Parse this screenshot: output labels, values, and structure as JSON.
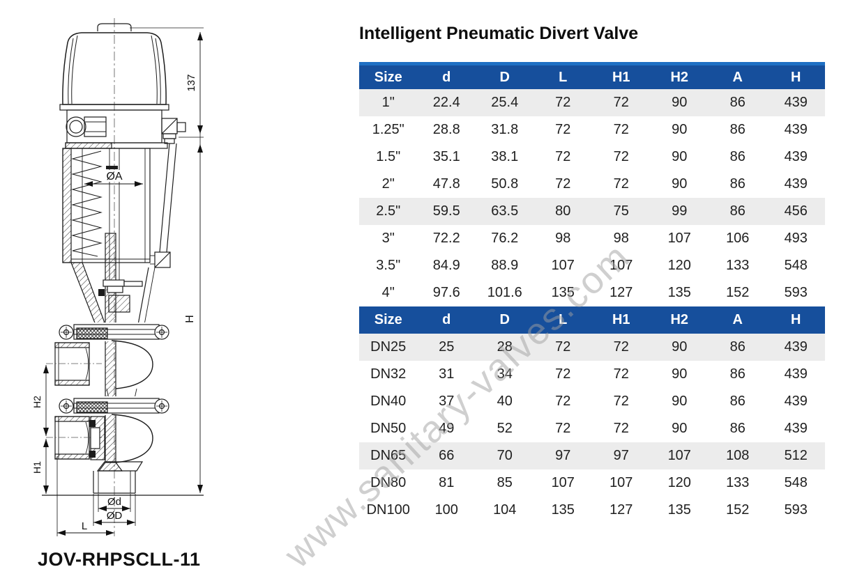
{
  "title": "Intelligent Pneumatic Divert Valve",
  "model": "JOV-RHPSCLL-11",
  "watermark": "www.sanitary-valves.com",
  "colors": {
    "header_bg": "#164f9c",
    "header_top_strip": "#1e6fc3",
    "row_stripe": "#ececec"
  },
  "drawing": {
    "dims": {
      "height_137": "137",
      "total_h": "H",
      "h2": "H2",
      "h1": "H1",
      "dia_a": "ØA",
      "dia_d_inner": "Ød",
      "dia_d_outer": "ØD",
      "l": "L"
    }
  },
  "tables": [
    {
      "headers": [
        "Size",
        "d",
        "D",
        "L",
        "H1",
        "H2",
        "A",
        "H"
      ],
      "rows": [
        [
          "1\"",
          "22.4",
          "25.4",
          "72",
          "72",
          "90",
          "86",
          "439"
        ],
        [
          "1.25\"",
          "28.8",
          "31.8",
          "72",
          "72",
          "90",
          "86",
          "439"
        ],
        [
          "1.5\"",
          "35.1",
          "38.1",
          "72",
          "72",
          "90",
          "86",
          "439"
        ],
        [
          "2\"",
          "47.8",
          "50.8",
          "72",
          "72",
          "90",
          "86",
          "439"
        ],
        [
          "2.5\"",
          "59.5",
          "63.5",
          "80",
          "75",
          "99",
          "86",
          "456"
        ],
        [
          "3\"",
          "72.2",
          "76.2",
          "98",
          "98",
          "107",
          "106",
          "493"
        ],
        [
          "3.5\"",
          "84.9",
          "88.9",
          "107",
          "107",
          "120",
          "133",
          "548"
        ],
        [
          "4\"",
          "97.6",
          "101.6",
          "135",
          "127",
          "135",
          "152",
          "593"
        ]
      ]
    },
    {
      "headers": [
        "Size",
        "d",
        "D",
        "L",
        "H1",
        "H2",
        "A",
        "H"
      ],
      "rows": [
        [
          "DN25",
          "25",
          "28",
          "72",
          "72",
          "90",
          "86",
          "439"
        ],
        [
          "DN32",
          "31",
          "34",
          "72",
          "72",
          "90",
          "86",
          "439"
        ],
        [
          "DN40",
          "37",
          "40",
          "72",
          "72",
          "90",
          "86",
          "439"
        ],
        [
          "DN50",
          "49",
          "52",
          "72",
          "72",
          "90",
          "86",
          "439"
        ],
        [
          "DN65",
          "66",
          "70",
          "97",
          "97",
          "107",
          "108",
          "512"
        ],
        [
          "DN80",
          "81",
          "85",
          "107",
          "107",
          "120",
          "133",
          "548"
        ],
        [
          "DN100",
          "100",
          "104",
          "135",
          "127",
          "135",
          "152",
          "593"
        ]
      ]
    }
  ]
}
